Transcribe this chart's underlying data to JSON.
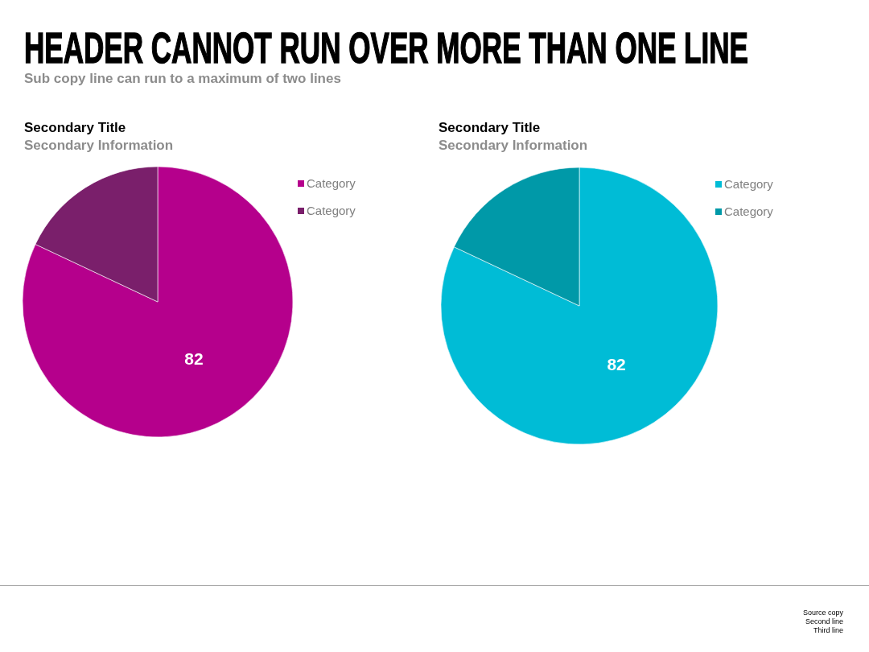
{
  "chart_data": [
    {
      "type": "other",
      "title": "HEADER CANNOT RUN OVER MORE THAN ONE LINE",
      "subtitle": "Sub copy line can run to a maximum of two lines",
      "annotations": [
        "Source copy",
        "Second line",
        "Third line"
      ]
    },
    {
      "type": "pie",
      "title": "Secondary Title",
      "subtitle": "Secondary Information",
      "categories": [
        "Category",
        "Category"
      ],
      "values": [
        82,
        18
      ],
      "colors": [
        "#b5008c",
        "#7a1f6b"
      ],
      "value_labels": [
        "82",
        null
      ],
      "legend": "top right"
    },
    {
      "type": "pie",
      "title": "Secondary Title",
      "subtitle": "Secondary Information",
      "categories": [
        "Category",
        "Category"
      ],
      "values": [
        82,
        18
      ],
      "colors": [
        "#00bcd6",
        "#0099a8"
      ],
      "value_labels": [
        "82",
        null
      ],
      "legend": "top right"
    }
  ]
}
